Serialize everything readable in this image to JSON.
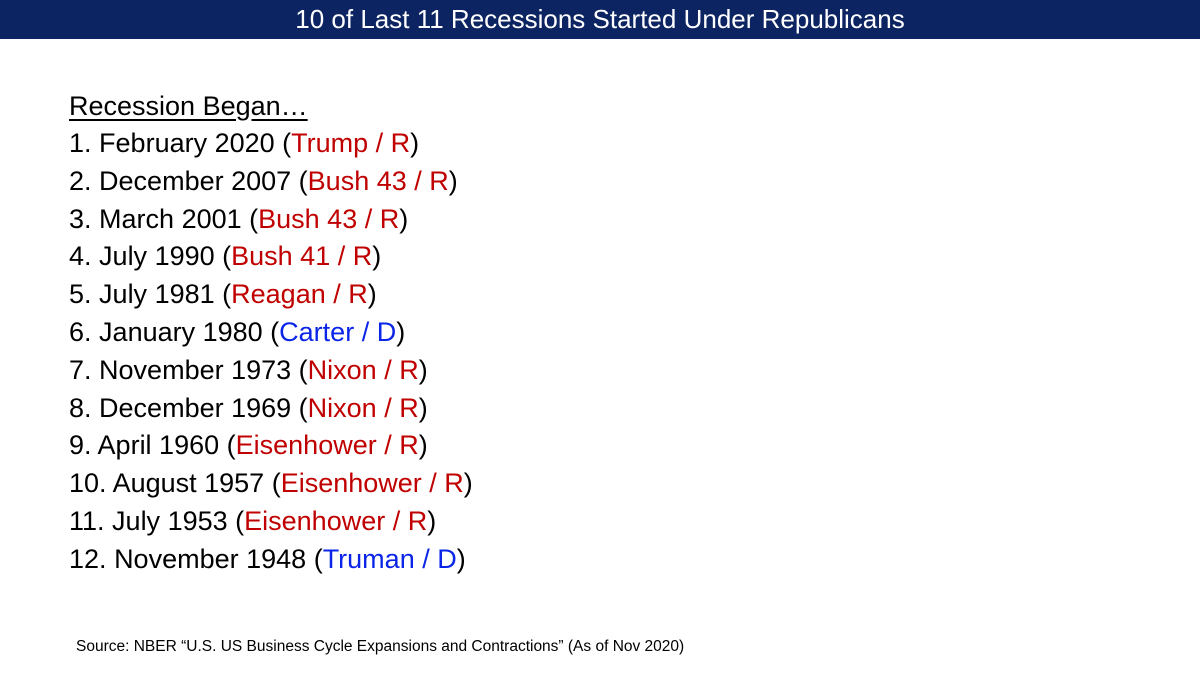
{
  "title": "10 of Last 11 Recessions Started Under Republicans",
  "heading": "Recession Began…",
  "items": [
    {
      "num": "1.",
      "date": "February 2020 ",
      "president": "Trump / R",
      "party": "R",
      "color": "#c00000"
    },
    {
      "num": "2.",
      "date": "December 2007",
      "president": "Bush 43 / R",
      "party": "R",
      "color": "#c00000"
    },
    {
      "num": "3.",
      "date": "March 2001",
      "president": "Bush 43 / R",
      "party": "R",
      "color": "#c00000"
    },
    {
      "num": "4.",
      "date": "July 1990",
      "president": "Bush 41 / R",
      "party": "R",
      "color": "#c00000"
    },
    {
      "num": "5.",
      "date": "July 1981",
      "president": "Reagan / R",
      "party": "R",
      "color": "#c00000"
    },
    {
      "num": "6.",
      "date": "January 1980",
      "president": "Carter / D",
      "party": "D",
      "color": "#0a24e8"
    },
    {
      "num": "7.",
      "date": "November 1973",
      "president": "Nixon / R",
      "party": "R",
      "color": "#c00000"
    },
    {
      "num": "8.",
      "date": "December 1969",
      "president": "Nixon / R",
      "party": "R",
      "color": "#c00000"
    },
    {
      "num": "9.",
      "date": "April 1960",
      "president": "Eisenhower / R",
      "party": "R",
      "color": "#c00000"
    },
    {
      "num": "10.",
      "date": "August 1957",
      "president": "Eisenhower / R",
      "party": "R",
      "color": "#c00000"
    },
    {
      "num": "11.",
      "date": "July 1953",
      "president": "Eisenhower / R",
      "party": "R",
      "color": "#c00000"
    },
    {
      "num": "12.",
      "date": "November 1948",
      "president": "Truman / D",
      "party": "D",
      "color": "#0a24e8"
    }
  ],
  "source": "Source:  NBER “U.S. US Business Cycle Expansions and Contractions” (As of Nov 2020)",
  "colors": {
    "title_bar": "#0c2461",
    "republican": "#c00000",
    "democrat": "#0a24e8"
  }
}
